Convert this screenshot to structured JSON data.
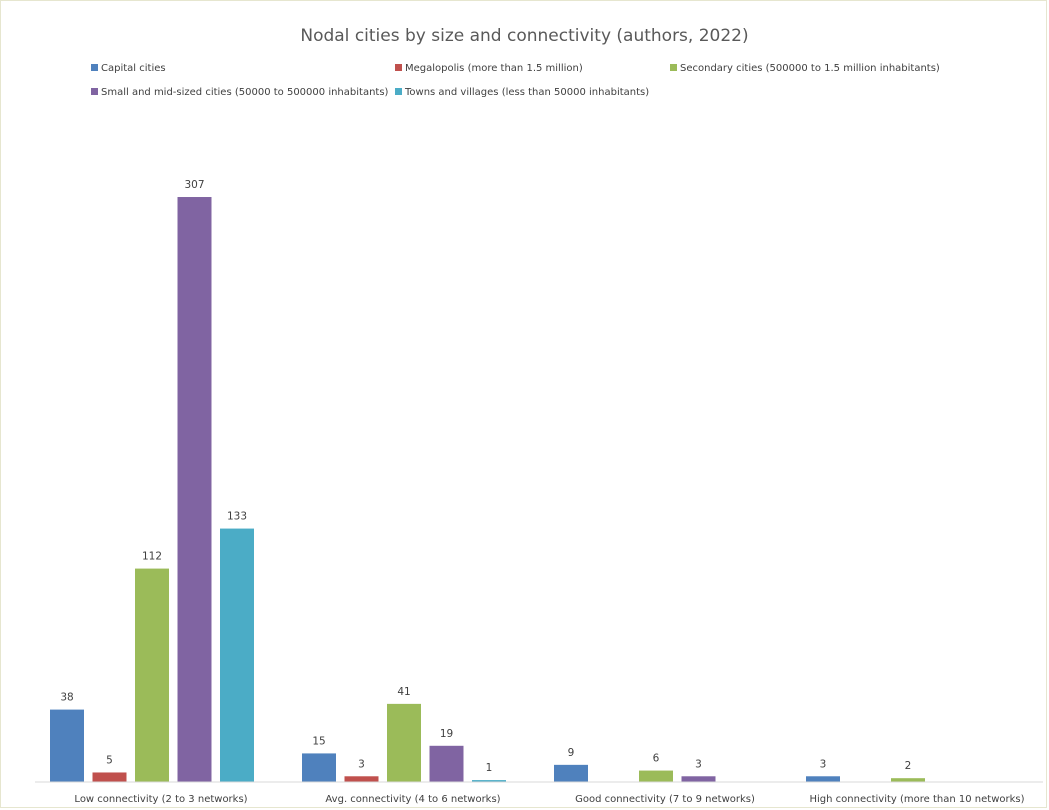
{
  "chart_data": {
    "type": "bar",
    "title": "Nodal cities by size and connectivity (authors, 2022)",
    "xlabel": "",
    "ylabel": "",
    "ylim": [
      0,
      330
    ],
    "grid": false,
    "legend_position": "top",
    "categories": [
      "Low connectivity (2 to 3 networks)",
      "Avg. connectivity (4 to 6 networks)",
      "Good connectivity (7 to 9 networks)",
      "High connectivity (more than 10 networks)"
    ],
    "series": [
      {
        "name": "Capital cities",
        "color": "#4f81bd",
        "values": [
          38,
          15,
          9,
          3
        ]
      },
      {
        "name": "Megalopolis (more than 1.5 million)",
        "color": "#c0504d",
        "values": [
          5,
          3,
          null,
          null
        ]
      },
      {
        "name": "Secondary cities (500000 to 1.5 million inhabitants)",
        "color": "#9bbb59",
        "values": [
          112,
          41,
          6,
          2
        ]
      },
      {
        "name": "Small and mid-sized cities (50000 to 500000 inhabitants)",
        "color": "#8064a2",
        "values": [
          307,
          19,
          3,
          null
        ]
      },
      {
        "name": "Towns and villages (less than 50000 inhabitants)",
        "color": "#4bacc6",
        "values": [
          133,
          1,
          null,
          null
        ]
      }
    ]
  }
}
